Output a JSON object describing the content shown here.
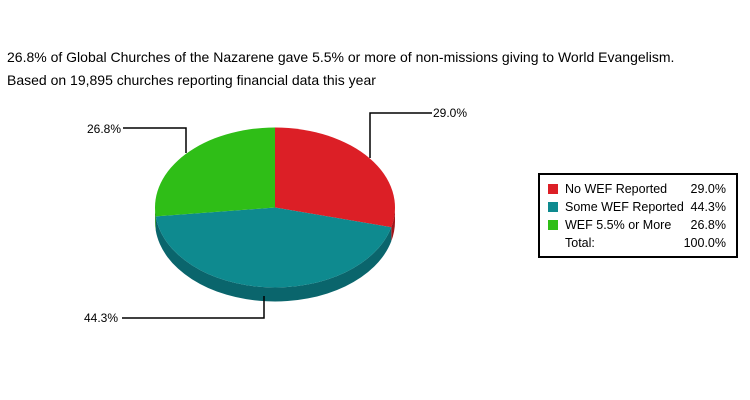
{
  "header": {
    "line1": "26.8% of Global Churches of the Nazarene gave 5.5% or more of non-missions giving to World Evangelism.",
    "line2": "Based on 19,895 churches reporting financial data this year"
  },
  "chart_data": {
    "type": "pie",
    "style": "3d",
    "title": "26.8% of Global Churches of the Nazarene gave 5.5% or more of non-missions giving to World Evangelism.",
    "subtitle": "Based on 19,895 churches reporting financial data this year",
    "direction": "clockwise",
    "start_angle_deg": 0,
    "legend_position": "right",
    "total": 100.0,
    "slices": [
      {
        "label": "No WEF Reported",
        "value": 29.0,
        "pct_label": "29.0%",
        "color": "#dc1f26",
        "side_color": "#a3141a"
      },
      {
        "label": "Some WEF Reported",
        "value": 44.3,
        "pct_label": "44.3%",
        "color": "#0e8a8f",
        "side_color": "#0a656c"
      },
      {
        "label": "WEF 5.5% or More",
        "value": 26.8,
        "pct_label": "26.8%",
        "color": "#2fbe17",
        "side_color": "#218c10"
      }
    ]
  },
  "legend": {
    "items": [
      {
        "label": "No WEF Reported",
        "value": "29.0%",
        "color": "#dc1f26"
      },
      {
        "label": "Some WEF Reported",
        "value": "44.3%",
        "color": "#0e8a8f"
      },
      {
        "label": "WEF 5.5% or More",
        "value": "26.8%",
        "color": "#2fbe17"
      }
    ],
    "total_label": "Total:",
    "total_value": "100.0%"
  },
  "colors": {
    "text": "#000000",
    "leader_line": "#000000",
    "background": "#ffffff"
  }
}
